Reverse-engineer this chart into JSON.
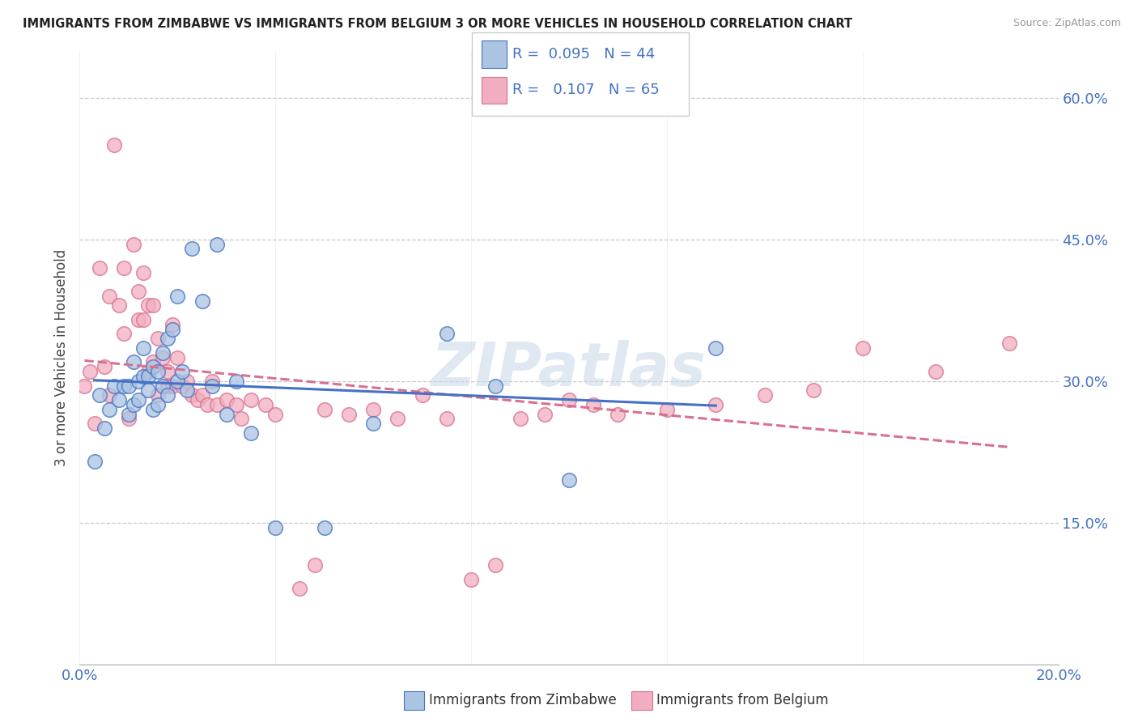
{
  "title": "IMMIGRANTS FROM ZIMBABWE VS IMMIGRANTS FROM BELGIUM 3 OR MORE VEHICLES IN HOUSEHOLD CORRELATION CHART",
  "source": "Source: ZipAtlas.com",
  "ylabel": "3 or more Vehicles in Household",
  "xlim": [
    0.0,
    0.2
  ],
  "ylim": [
    0.0,
    0.65
  ],
  "xticks": [
    0.0,
    0.04,
    0.08,
    0.12,
    0.16,
    0.2
  ],
  "yticks": [
    0.15,
    0.3,
    0.45,
    0.6
  ],
  "ytick_labels": [
    "15.0%",
    "30.0%",
    "45.0%",
    "60.0%"
  ],
  "xtick_labels_show": [
    "0.0%",
    "20.0%"
  ],
  "R_zimbabwe": 0.095,
  "N_zimbabwe": 44,
  "R_belgium": 0.107,
  "N_belgium": 65,
  "color_zimbabwe": "#aac4e2",
  "color_belgium": "#f2aec0",
  "line_color_zimbabwe": "#4472c4",
  "line_color_belgium": "#d87090",
  "background_color": "#ffffff",
  "grid_color": "#c8c8c8",
  "zimbabwe_x": [
    0.003,
    0.004,
    0.005,
    0.006,
    0.007,
    0.008,
    0.009,
    0.01,
    0.01,
    0.011,
    0.011,
    0.012,
    0.012,
    0.013,
    0.013,
    0.014,
    0.014,
    0.015,
    0.015,
    0.016,
    0.016,
    0.017,
    0.017,
    0.018,
    0.018,
    0.019,
    0.02,
    0.02,
    0.021,
    0.022,
    0.023,
    0.025,
    0.027,
    0.028,
    0.03,
    0.032,
    0.035,
    0.04,
    0.05,
    0.06,
    0.075,
    0.085,
    0.1,
    0.13
  ],
  "zimbabwe_y": [
    0.215,
    0.285,
    0.25,
    0.27,
    0.295,
    0.28,
    0.295,
    0.265,
    0.295,
    0.275,
    0.32,
    0.28,
    0.3,
    0.305,
    0.335,
    0.305,
    0.29,
    0.315,
    0.27,
    0.31,
    0.275,
    0.295,
    0.33,
    0.285,
    0.345,
    0.355,
    0.3,
    0.39,
    0.31,
    0.29,
    0.44,
    0.385,
    0.295,
    0.445,
    0.265,
    0.3,
    0.245,
    0.145,
    0.145,
    0.255,
    0.35,
    0.295,
    0.195,
    0.335
  ],
  "belgium_x": [
    0.001,
    0.002,
    0.003,
    0.004,
    0.005,
    0.006,
    0.006,
    0.007,
    0.008,
    0.009,
    0.009,
    0.01,
    0.011,
    0.012,
    0.012,
    0.013,
    0.013,
    0.014,
    0.014,
    0.015,
    0.015,
    0.016,
    0.016,
    0.017,
    0.018,
    0.018,
    0.019,
    0.019,
    0.02,
    0.021,
    0.022,
    0.023,
    0.024,
    0.025,
    0.026,
    0.027,
    0.028,
    0.03,
    0.032,
    0.033,
    0.035,
    0.038,
    0.04,
    0.045,
    0.048,
    0.05,
    0.055,
    0.06,
    0.065,
    0.07,
    0.075,
    0.08,
    0.085,
    0.09,
    0.095,
    0.1,
    0.105,
    0.11,
    0.12,
    0.13,
    0.14,
    0.15,
    0.16,
    0.175,
    0.19
  ],
  "belgium_y": [
    0.295,
    0.31,
    0.255,
    0.42,
    0.315,
    0.39,
    0.285,
    0.55,
    0.38,
    0.35,
    0.42,
    0.26,
    0.445,
    0.365,
    0.395,
    0.365,
    0.415,
    0.31,
    0.38,
    0.32,
    0.38,
    0.285,
    0.345,
    0.325,
    0.31,
    0.295,
    0.295,
    0.36,
    0.325,
    0.295,
    0.3,
    0.285,
    0.28,
    0.285,
    0.275,
    0.3,
    0.275,
    0.28,
    0.275,
    0.26,
    0.28,
    0.275,
    0.265,
    0.08,
    0.105,
    0.27,
    0.265,
    0.27,
    0.26,
    0.285,
    0.26,
    0.09,
    0.105,
    0.26,
    0.265,
    0.28,
    0.275,
    0.265,
    0.27,
    0.275,
    0.285,
    0.29,
    0.335,
    0.31,
    0.34
  ]
}
